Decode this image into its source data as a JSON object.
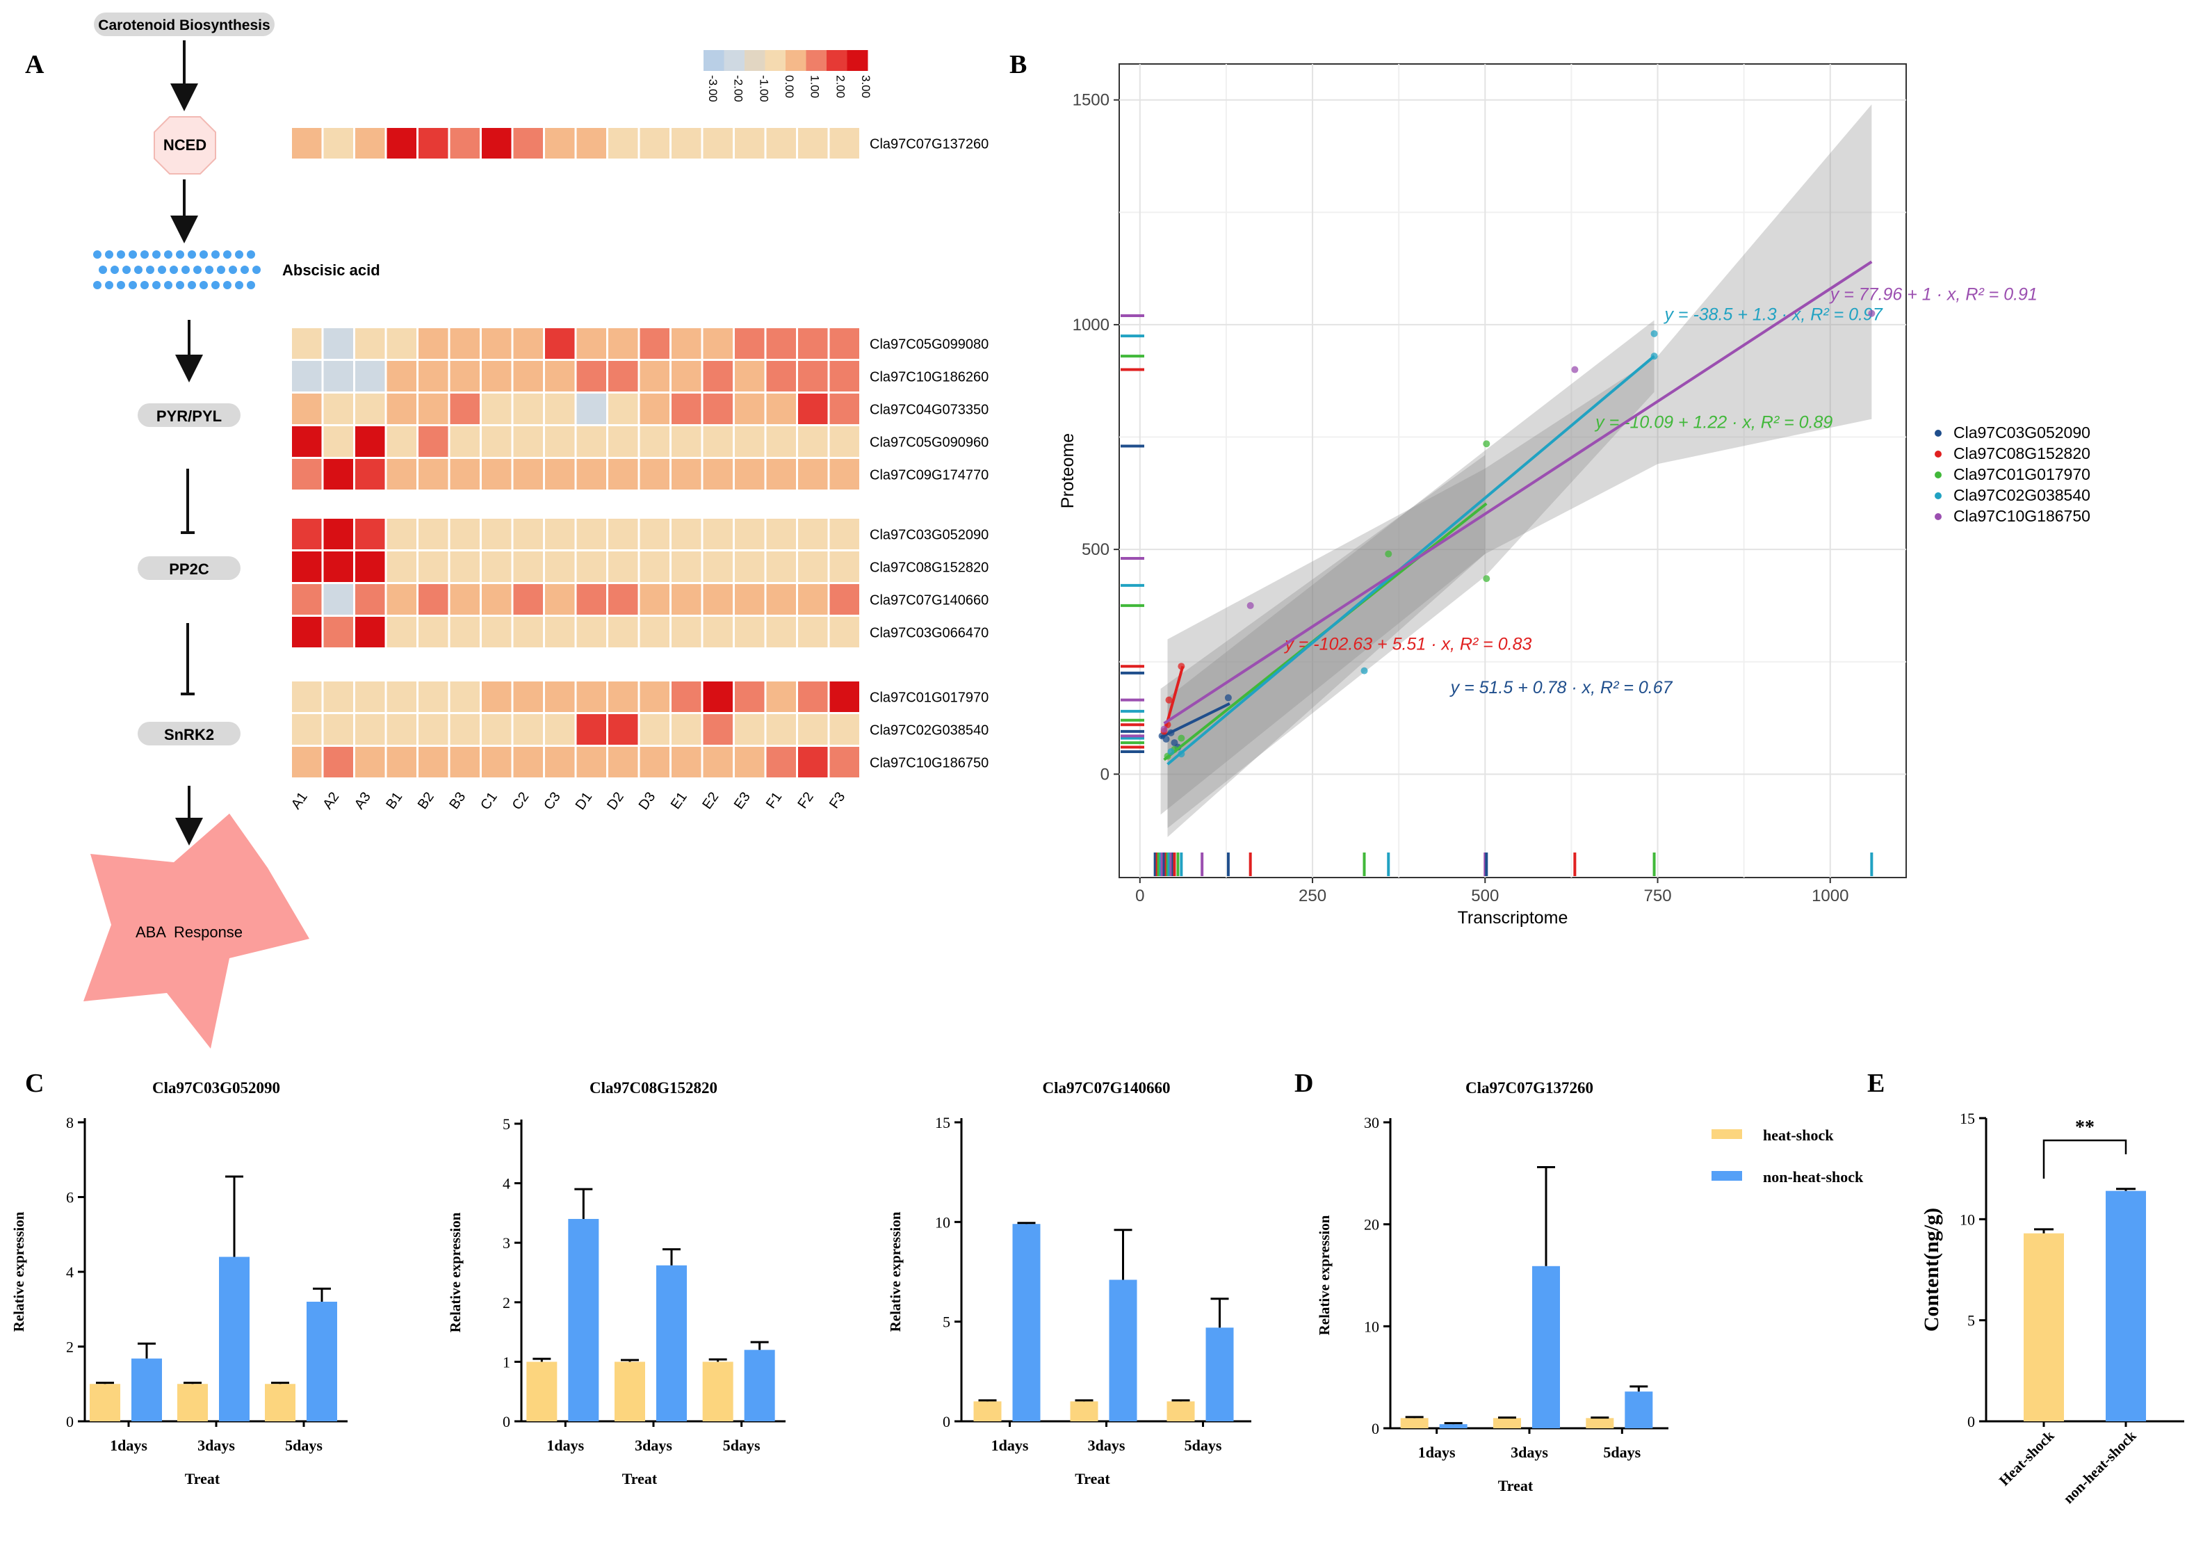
{
  "panel_labels": {
    "A": "A",
    "B": "B",
    "C": "C",
    "D": "D",
    "E": "E"
  },
  "pathway": {
    "start": "Carotenoid Biosynthesis",
    "nced": "NCED",
    "aba": "Abscisic acid",
    "pyr": "PYR/PYL",
    "pp2c": "PP2C",
    "snrk2": "SnRK2",
    "response": "ABA  Response"
  },
  "colors": {
    "heat": "#fcd57e",
    "nonheat": "#55a0f7",
    "s1": "#1f4e8c",
    "s2": "#e02020",
    "s3": "#41b83a",
    "s4": "#21a2c2",
    "s5": "#9b4fb0",
    "band": "#8a8a8a"
  },
  "chart_data": [
    {
      "type": "heatmap",
      "legend": {
        "ticks": [
          "-3.00",
          "-2.00",
          "-1.00",
          "0.00",
          "1.00",
          "2.00",
          "3.00"
        ],
        "colors": [
          "#b9cfe6",
          "#cfd9e2",
          "#e2d6c2",
          "#f5dab0",
          "#f5b98a",
          "#ef7f68",
          "#e63a35",
          "#d80f14"
        ]
      },
      "columns": [
        "A1",
        "A2",
        "A3",
        "B1",
        "B2",
        "B3",
        "C1",
        "C2",
        "C3",
        "D1",
        "D2",
        "D3",
        "E1",
        "E2",
        "E3",
        "F1",
        "F2",
        "F3"
      ],
      "groups": [
        {
          "rows": [
            {
              "gene": "Cla97C07G137260",
              "values": [
                0.3,
                -0.6,
                0.3,
                2.4,
                1.6,
                1.1,
                2.6,
                1.2,
                0.3,
                0.2,
                -0.4,
                -0.6,
                -0.6,
                -0.6,
                -0.6,
                -0.6,
                -0.6,
                -0.6
              ]
            }
          ]
        },
        {
          "rows": [
            {
              "gene": "Cla97C05G099080",
              "values": [
                -0.3,
                -1.8,
                -0.3,
                -0.5,
                0.2,
                0.2,
                0.2,
                0.3,
                2.1,
                0.3,
                0.6,
                1.2,
                0.3,
                0.3,
                1.1,
                1.3,
                1.4,
                1.2
              ]
            },
            {
              "gene": "Cla97C10G186260",
              "values": [
                -1.6,
                -1.6,
                -1.6,
                0.1,
                0.2,
                0.2,
                0.2,
                0.3,
                0.3,
                1.4,
                0.9,
                0.2,
                0.4,
                1.0,
                0.3,
                1.3,
                1.1,
                1.4
              ]
            },
            {
              "gene": "Cla97C04G073350",
              "values": [
                0.3,
                -0.6,
                -0.3,
                0.2,
                0.4,
                1.2,
                -0.6,
                -0.6,
                -0.5,
                -1.6,
                -0.6,
                0.2,
                1.0,
                1.3,
                0.6,
                0.6,
                2.1,
                1.0
              ]
            },
            {
              "gene": "Cla97C05G090960",
              "values": [
                2.3,
                -0.6,
                2.9,
                -0.2,
                1.2,
                -0.6,
                -0.6,
                -0.6,
                -0.6,
                -0.6,
                -0.6,
                -0.6,
                -0.6,
                -0.6,
                -0.6,
                -0.6,
                -0.6,
                -0.6
              ]
            },
            {
              "gene": "Cla97C09G174770",
              "values": [
                1.2,
                2.9,
                2.2,
                0.2,
                0.2,
                0.2,
                0.2,
                0.2,
                0.2,
                0.2,
                0.2,
                0.2,
                0.2,
                0.2,
                0.2,
                0.2,
                0.2,
                0.2
              ]
            }
          ]
        },
        {
          "rows": [
            {
              "gene": "Cla97C03G052090",
              "values": [
                2.2,
                2.3,
                2.2,
                -0.6,
                -0.6,
                -0.6,
                -0.6,
                -0.6,
                -0.6,
                -0.6,
                -0.6,
                -0.6,
                -0.6,
                -0.6,
                -0.6,
                -0.6,
                -0.6,
                -0.6
              ]
            },
            {
              "gene": "Cla97C08G152820",
              "values": [
                2.3,
                2.3,
                2.3,
                -0.5,
                -0.5,
                -0.5,
                -0.5,
                -0.5,
                -0.5,
                -0.5,
                -0.5,
                -0.5,
                -0.5,
                -0.5,
                -0.5,
                -0.5,
                -0.5,
                -0.5
              ]
            },
            {
              "gene": "Cla97C07G140660",
              "values": [
                1.3,
                -1.8,
                1.3,
                0.2,
                1.1,
                0.2,
                0.2,
                1.1,
                0.2,
                1.1,
                0.9,
                0.2,
                0.2,
                0.2,
                0.2,
                0.2,
                0.2,
                1.1
              ]
            },
            {
              "gene": "Cla97C03G066470",
              "values": [
                2.3,
                1.3,
                2.9,
                -0.3,
                -0.3,
                -0.3,
                -0.3,
                -0.3,
                -0.3,
                -0.3,
                -0.3,
                -0.3,
                -0.3,
                -0.3,
                -0.3,
                -0.3,
                -0.3,
                -0.3
              ]
            }
          ]
        },
        {
          "rows": [
            {
              "gene": "Cla97C01G017970",
              "values": [
                -0.6,
                -0.6,
                -0.6,
                -0.6,
                -0.6,
                -0.6,
                0.2,
                0.2,
                0.2,
                0.3,
                0.3,
                0.2,
                1.3,
                2.3,
                1.3,
                0.3,
                1.3,
                2.3
              ]
            },
            {
              "gene": "Cla97C02G038540",
              "values": [
                -0.6,
                -0.6,
                -0.6,
                -0.6,
                -0.6,
                -0.6,
                -0.6,
                -0.6,
                -0.6,
                2.2,
                2.2,
                -0.6,
                -0.6,
                1.2,
                -0.6,
                -0.6,
                -0.6,
                -0.6
              ]
            },
            {
              "gene": "Cla97C10G186750",
              "values": [
                0.2,
                1.2,
                0.2,
                0.2,
                0.2,
                0.2,
                0.2,
                0.2,
                0.2,
                0.2,
                0.2,
                0.2,
                0.2,
                0.2,
                0.2,
                1.3,
                1.6,
                1.3
              ]
            }
          ]
        }
      ]
    },
    {
      "type": "scatter",
      "xlabel": "Transcriptome",
      "ylabel": "Proteome",
      "xlim": [
        -30,
        1110
      ],
      "ylim": [
        -230,
        1580
      ],
      "xticks": [
        0,
        250,
        500,
        750,
        1000
      ],
      "yticks": [
        0,
        500,
        1000,
        1500
      ],
      "grid": true,
      "legend_position": "right",
      "series": [
        {
          "name": "Cla97C03G052090",
          "color_key": "s1",
          "points": [
            [
              32,
              85
            ],
            [
              38,
              78
            ],
            [
              45,
              92
            ],
            [
              50,
              70
            ],
            [
              55,
              60
            ],
            [
              128,
              170
            ]
          ],
          "line": [
            [
              30,
              82
            ],
            [
              130,
              157
            ]
          ],
          "equation": "y = 51.5 + 0.78 · x,   R² = 0.67",
          "eq_at": [
            450,
            180
          ]
        },
        {
          "name": "Cla97C08G152820",
          "color_key": "s2",
          "points": [
            [
              35,
              95
            ],
            [
              40,
              110
            ],
            [
              42,
              165
            ],
            [
              60,
              240
            ]
          ],
          "line": [
            [
              35,
              90
            ],
            [
              62,
              240
            ]
          ],
          "equation": "y = -102.63 + 5.51 · x,   R² = 0.83",
          "eq_at": [
            210,
            277
          ]
        },
        {
          "name": "Cla97C01G017970",
          "color_key": "s3",
          "points": [
            [
              40,
              40
            ],
            [
              50,
              55
            ],
            [
              60,
              80
            ],
            [
              360,
              490
            ],
            [
              502,
              735
            ],
            [
              502,
              435
            ]
          ],
          "line": [
            [
              35,
              32
            ],
            [
              502,
              602
            ]
          ],
          "equation": "y = -10.09 + 1.22 · x,   R² = 0.89",
          "eq_at": [
            660,
            770
          ]
        },
        {
          "name": "Cla97C02G038540",
          "color_key": "s4",
          "points": [
            [
              45,
              50
            ],
            [
              60,
              45
            ],
            [
              325,
              230
            ],
            [
              745,
              930
            ],
            [
              745,
              980
            ]
          ],
          "line": [
            [
              40,
              22
            ],
            [
              745,
              930
            ]
          ],
          "equation": "y = -38.5 + 1.3 · x,   R² = 0.97",
          "eq_at": [
            760,
            1010
          ]
        },
        {
          "name": "Cla97C10G186750",
          "color_key": "s5",
          "points": [
            [
              35,
              100
            ],
            [
              160,
              375
            ],
            [
              630,
              900
            ],
            [
              1060,
              1025
            ]
          ],
          "line": [
            [
              35,
              113
            ],
            [
              1060,
              1140
            ]
          ],
          "equation": "y = 77.96 + 1 · x,   R² = 0.91",
          "eq_at": [
            1000,
            1055
          ]
        }
      ],
      "bands": [
        {
          "lower": [
            [
              40,
              -140
            ],
            [
              500,
              490
            ],
            [
              750,
              690
            ],
            [
              1060,
              790
            ]
          ],
          "upper": [
            [
              40,
              300
            ],
            [
              500,
              680
            ],
            [
              750,
              930
            ],
            [
              1060,
              1490
            ]
          ]
        },
        {
          "lower": [
            [
              40,
              -120
            ],
            [
              500,
              440
            ],
            [
              745,
              850
            ]
          ],
          "upper": [
            [
              40,
              170
            ],
            [
              500,
              720
            ],
            [
              745,
              1010
            ]
          ]
        },
        {
          "lower": [
            [
              30,
              -90
            ],
            [
              500,
              490
            ]
          ],
          "upper": [
            [
              30,
              190
            ],
            [
              500,
              710
            ]
          ]
        }
      ],
      "rug_x": [
        22,
        25,
        27,
        30,
        32,
        35,
        38,
        40,
        42,
        45,
        48,
        50,
        55,
        60,
        90,
        128,
        160,
        325,
        360,
        500,
        502,
        630,
        745,
        1060
      ],
      "rug_y": [
        50,
        60,
        70,
        80,
        85,
        95,
        110,
        120,
        140,
        165,
        225,
        240,
        375,
        420,
        480,
        730,
        900,
        930,
        975,
        1020
      ]
    },
    {
      "type": "bar",
      "title": "Cla97C03G052090",
      "xlabel": "Treat",
      "ylabel": "Relative expression",
      "categories": [
        "1days",
        "3days",
        "5days"
      ],
      "ylim": [
        0,
        8
      ],
      "yticks": [
        0,
        2,
        4,
        6,
        8
      ],
      "series": [
        {
          "name": "heat-shock",
          "values": [
            1.0,
            1.0,
            1.0
          ],
          "errors": [
            0.03,
            0.03,
            0.03
          ]
        },
        {
          "name": "non-heat-shock",
          "values": [
            1.68,
            4.4,
            3.2
          ],
          "errors": [
            0.4,
            2.15,
            0.35
          ]
        }
      ]
    },
    {
      "type": "bar",
      "title": "Cla97C08G152820",
      "xlabel": "Treat",
      "ylabel": "Relative expression",
      "categories": [
        "1days",
        "3days",
        "5days"
      ],
      "ylim": [
        0,
        5
      ],
      "yticks": [
        0,
        1,
        2,
        3,
        4,
        5
      ],
      "series": [
        {
          "name": "heat-shock",
          "values": [
            1.0,
            1.0,
            1.0
          ],
          "errors": [
            0.05,
            0.03,
            0.04
          ]
        },
        {
          "name": "non-heat-shock",
          "values": [
            3.4,
            2.62,
            1.2
          ],
          "errors": [
            0.5,
            0.27,
            0.13
          ]
        }
      ]
    },
    {
      "type": "bar",
      "title": "Cla97C07G140660",
      "xlabel": "Treat",
      "ylabel": "Relative expression",
      "categories": [
        "1days",
        "3days",
        "5days"
      ],
      "ylim": [
        0,
        15
      ],
      "yticks": [
        0,
        5,
        10,
        15
      ],
      "series": [
        {
          "name": "heat-shock",
          "values": [
            1.0,
            1.0,
            1.0
          ],
          "errors": [
            0.05,
            0.05,
            0.05
          ]
        },
        {
          "name": "non-heat-shock",
          "values": [
            9.9,
            7.1,
            4.7
          ],
          "errors": [
            0.05,
            2.5,
            1.45
          ]
        }
      ]
    },
    {
      "type": "bar",
      "title": "Cla97C07G137260",
      "xlabel": "Treat",
      "ylabel": "Relative expression",
      "categories": [
        "1days",
        "3days",
        "5days"
      ],
      "ylim": [
        0,
        30
      ],
      "yticks": [
        0,
        10,
        20,
        30
      ],
      "series": [
        {
          "name": "heat-shock",
          "values": [
            1.0,
            1.0,
            1.0
          ],
          "errors": [
            0.1,
            0.05,
            0.05
          ]
        },
        {
          "name": "non-heat-shock",
          "values": [
            0.4,
            15.9,
            3.6
          ],
          "errors": [
            0.1,
            9.7,
            0.5
          ]
        }
      ],
      "legend": [
        "heat-shock",
        "non-heat-shock"
      ]
    },
    {
      "type": "bar",
      "ylabel": "Content(ng/g)",
      "categories": [
        "Heat-shock",
        "non-heat-shock"
      ],
      "ylim": [
        0,
        15
      ],
      "yticks": [
        0,
        5,
        10,
        15
      ],
      "values": [
        9.3,
        11.4
      ],
      "errors": [
        0.2,
        0.1
      ],
      "significance": "**"
    }
  ]
}
